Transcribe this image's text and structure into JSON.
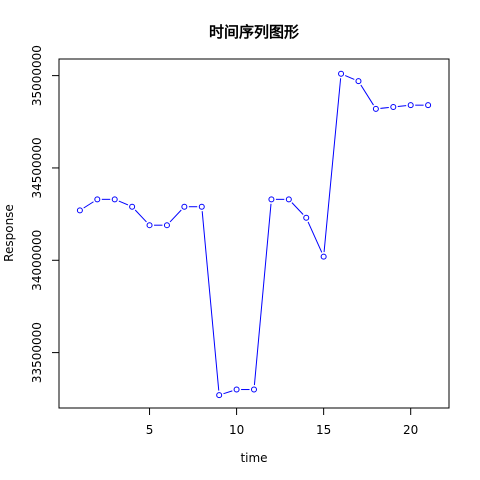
{
  "chart_data": {
    "type": "line",
    "title": "时间序列图形",
    "xlabel": "time",
    "ylabel": "Response",
    "x_ticks": [
      5,
      10,
      15,
      20
    ],
    "y_ticks": [
      33500000,
      34000000,
      34500000,
      35000000
    ],
    "x": [
      1,
      2,
      3,
      4,
      5,
      6,
      7,
      8,
      9,
      10,
      11,
      12,
      13,
      14,
      15,
      16,
      17,
      18,
      19,
      20,
      21
    ],
    "values": [
      34270000,
      34330000,
      34330000,
      34290000,
      34190000,
      34190000,
      34290000,
      34290000,
      33270000,
      33300000,
      33300000,
      34330000,
      34330000,
      34230000,
      34020000,
      35010000,
      34970000,
      34820000,
      34830000,
      34840000,
      34840000
    ],
    "xlim": [
      -0.2,
      22.2
    ],
    "ylim": [
      33200000,
      35090000
    ],
    "line_color": "#0000ff",
    "marker": "open-circle",
    "grid": false
  }
}
